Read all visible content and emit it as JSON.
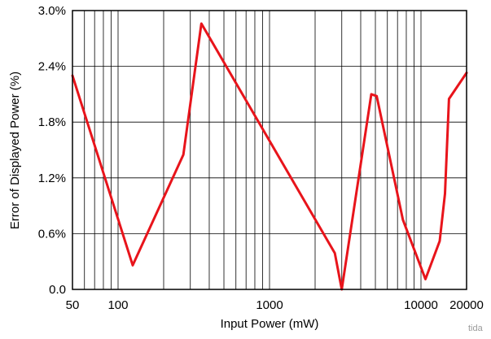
{
  "chart_data": {
    "type": "line",
    "title": "",
    "xlabel": "Input Power (mW)",
    "ylabel": "Error of Displayed Power (%)",
    "x_scale": "log",
    "xlim": [
      50,
      20000
    ],
    "ylim": [
      0,
      3.0
    ],
    "x_ticks": [
      {
        "value": 50,
        "label": "50"
      },
      {
        "value": 100,
        "label": "100"
      },
      {
        "value": 1000,
        "label": "1000"
      },
      {
        "value": 10000,
        "label": "10000"
      },
      {
        "value": 20000,
        "label": "20000"
      }
    ],
    "x_gridlines": [
      50,
      60,
      70,
      80,
      90,
      100,
      200,
      300,
      400,
      500,
      600,
      700,
      800,
      900,
      1000,
      2000,
      3000,
      4000,
      5000,
      6000,
      7000,
      8000,
      9000,
      10000,
      20000
    ],
    "y_ticks": [
      {
        "value": 0,
        "label": "0.0"
      },
      {
        "value": 0.6,
        "label": "0.6%"
      },
      {
        "value": 1.2,
        "label": "1.2%"
      },
      {
        "value": 1.8,
        "label": "1.8%"
      },
      {
        "value": 2.4,
        "label": "2.4%"
      },
      {
        "value": 3.0,
        "label": "3.0%"
      }
    ],
    "grid": true,
    "series": [
      {
        "color": "#e8141b",
        "x": [
          50,
          125,
          270,
          355,
          2700,
          3000,
          4700,
          5100,
          7600,
          10700,
          13300,
          14400,
          15300,
          20000
        ],
        "y": [
          2.3,
          0.26,
          1.45,
          2.86,
          0.39,
          0.0,
          2.1,
          2.08,
          0.75,
          0.11,
          0.52,
          1.03,
          2.05,
          2.33
        ]
      }
    ]
  },
  "credit_text": "tida"
}
